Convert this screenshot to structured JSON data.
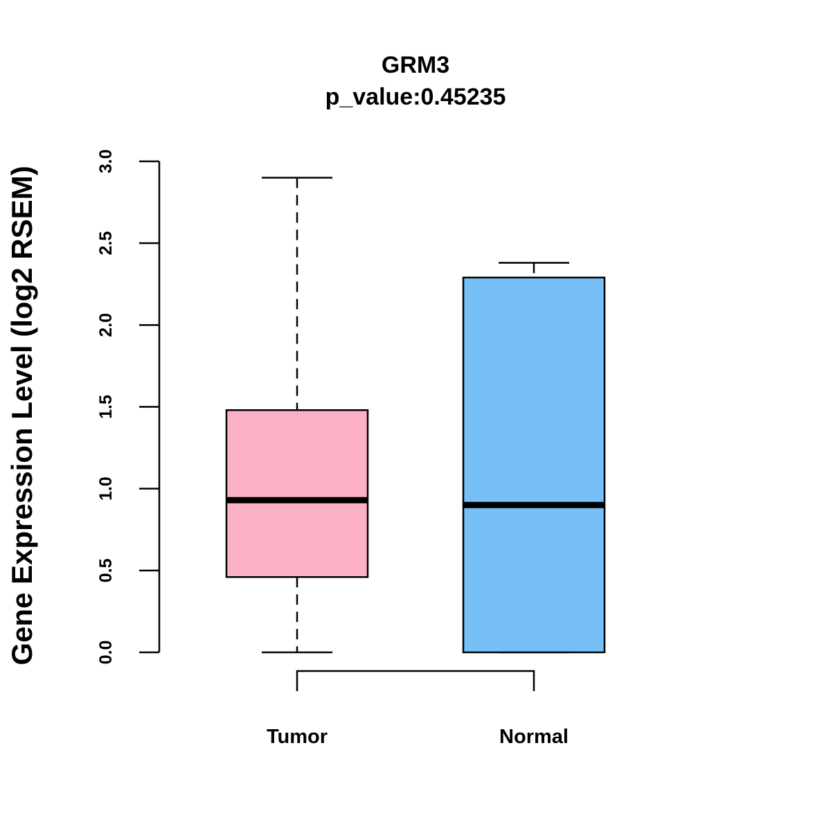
{
  "chart_data": {
    "type": "box",
    "title": "GRM3",
    "subtitle": "p_value:0.45235",
    "xlabel": "",
    "ylabel": "Gene Expression Level (log2 RSEM)",
    "ylim": [
      0,
      3
    ],
    "yticks": [
      "0.0",
      "0.5",
      "1.0",
      "1.5",
      "2.0",
      "2.5",
      "3.0"
    ],
    "ytick_values": [
      0,
      0.5,
      1.0,
      1.5,
      2.0,
      2.5,
      3.0
    ],
    "grid": false,
    "categories": [
      "Tumor",
      "Normal"
    ],
    "boxes": [
      {
        "name": "Tumor",
        "min": 0.0,
        "q1": 0.46,
        "median": 0.93,
        "q3": 1.48,
        "max": 2.9,
        "color": "#FBB1C3"
      },
      {
        "name": "Normal",
        "min": 0.0,
        "q1": 0.0,
        "median": 0.9,
        "q3": 2.29,
        "max": 2.38,
        "color": "#76C0F7"
      }
    ],
    "comparison_bracket": [
      "Tumor",
      "Normal"
    ]
  }
}
